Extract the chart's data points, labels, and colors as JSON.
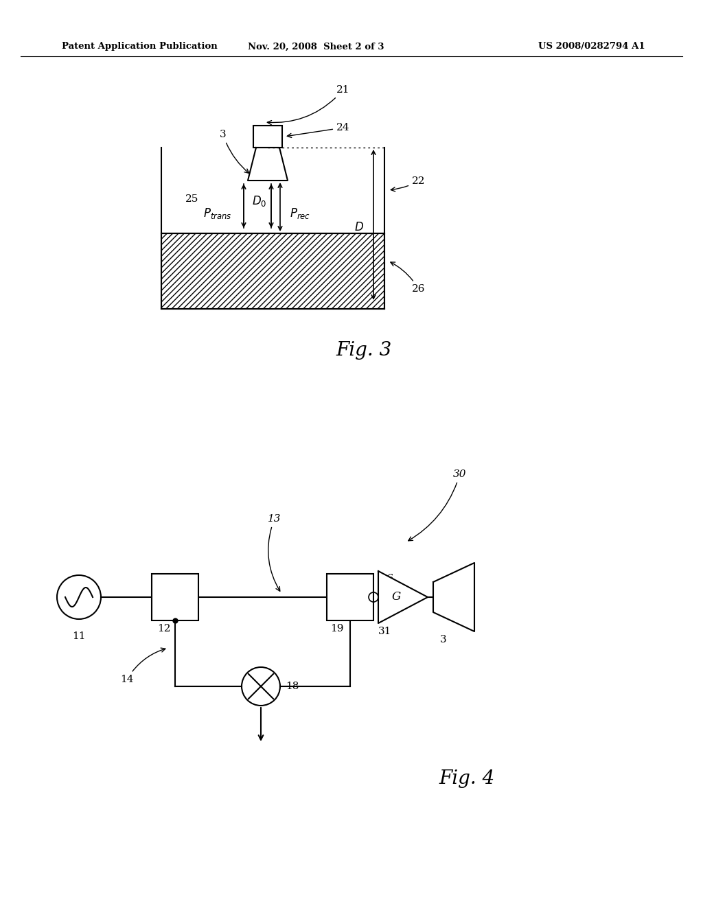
{
  "bg_color": "#ffffff",
  "header_left": "Patent Application Publication",
  "header_center": "Nov. 20, 2008  Sheet 2 of 3",
  "header_right": "US 2008/0282794 A1",
  "fig3_label": "Fig. 3",
  "fig4_label": "Fig. 4"
}
